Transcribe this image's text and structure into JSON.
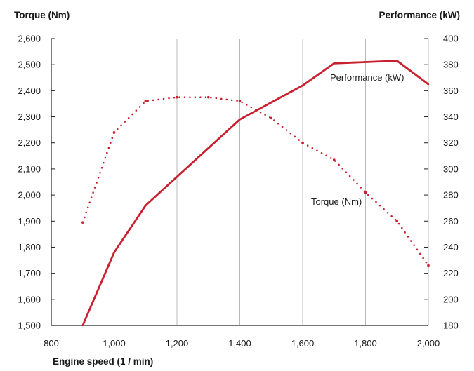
{
  "chart_data": {
    "type": "line",
    "title": "",
    "xlabel": "Engine speed (1 / min)",
    "ylabel_left": "Torque (Nm)",
    "ylabel_right": "Performance (kW)",
    "xlim": [
      800,
      2000
    ],
    "ylim_left": [
      1500,
      2600
    ],
    "ylim_right": [
      180,
      400
    ],
    "x_ticks": [
      800,
      1000,
      1200,
      1400,
      1600,
      1800,
      2000
    ],
    "x_tick_labels": [
      "800",
      "1,000",
      "1,200",
      "1,400",
      "1,600",
      "1,800",
      "2,000"
    ],
    "y_left_ticks": [
      1500,
      1600,
      1700,
      1800,
      1900,
      2000,
      2100,
      2200,
      2300,
      2400,
      2500,
      2600
    ],
    "y_left_tick_labels": [
      "1,500",
      "1,600",
      "1,700",
      "1,800",
      "1,900",
      "2,000",
      "2,100",
      "2,200",
      "2,300",
      "2,400",
      "2,500",
      "2,600"
    ],
    "y_right_ticks": [
      180,
      200,
      220,
      240,
      260,
      280,
      300,
      320,
      340,
      360,
      380,
      400
    ],
    "y_right_tick_labels": [
      "180",
      "200",
      "220",
      "240",
      "260",
      "280",
      "300",
      "320",
      "340",
      "360",
      "380",
      "400"
    ],
    "grid": "vertical",
    "series": [
      {
        "name": "Performance (kW)",
        "axis": "right",
        "style": "solid",
        "color": "#c8202e",
        "x": [
          900,
          1000,
          1100,
          1200,
          1300,
          1400,
          1500,
          1600,
          1700,
          1800,
          1900,
          2000
        ],
        "values": [
          180,
          236,
          272,
          294,
          316,
          338,
          351,
          364,
          381,
          382,
          383,
          365
        ]
      },
      {
        "name": "Torque (Nm)",
        "axis": "left",
        "style": "dotted",
        "color": "#c8202e",
        "x": [
          900,
          1000,
          1100,
          1200,
          1300,
          1400,
          1500,
          1600,
          1700,
          1800,
          1900,
          2000
        ],
        "values": [
          1895,
          2240,
          2360,
          2375,
          2375,
          2360,
          2295,
          2200,
          2135,
          2010,
          1900,
          1730
        ]
      }
    ]
  }
}
